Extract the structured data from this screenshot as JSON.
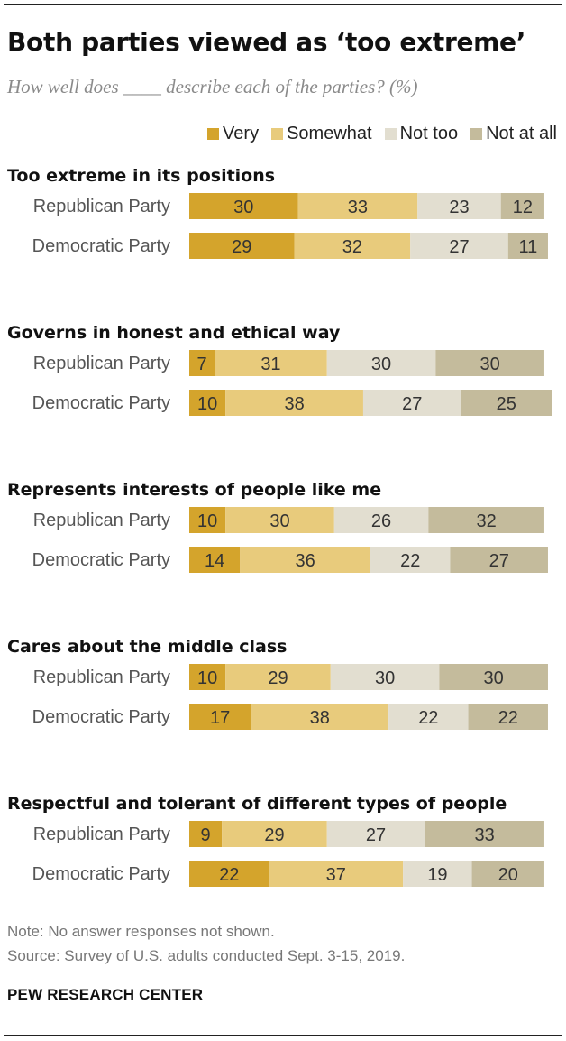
{
  "header": {
    "title": "Both parties viewed as ‘too extreme’",
    "subtitle": "How well does ____ describe each of the parties? (%)"
  },
  "legend": {
    "items": [
      {
        "label": "Very",
        "color": "#d4a42c"
      },
      {
        "label": "Somewhat",
        "color": "#e8cb7c"
      },
      {
        "label": "Not too",
        "color": "#e2ded0"
      },
      {
        "label": "Not at all",
        "color": "#c4bb9c"
      }
    ]
  },
  "chart_data": {
    "type": "bar",
    "orientation": "horizontal",
    "stacked": true,
    "title": "Both parties viewed as ‘too extreme’",
    "subtitle": "How well does ____ describe each of the parties? (%)",
    "series_names": [
      "Very",
      "Somewhat",
      "Not too",
      "Not at all"
    ],
    "colors": [
      "#d4a42c",
      "#e8cb7c",
      "#e2ded0",
      "#c4bb9c"
    ],
    "legend_position": "top-right",
    "grid": false,
    "groups": [
      {
        "label": "Too extreme in its positions",
        "rows": [
          {
            "label": "Republican Party",
            "values": [
              30,
              33,
              23,
              12
            ]
          },
          {
            "label": "Democratic Party",
            "values": [
              29,
              32,
              27,
              11
            ]
          }
        ]
      },
      {
        "label": "Governs in honest and ethical way",
        "rows": [
          {
            "label": "Republican Party",
            "values": [
              7,
              31,
              30,
              30
            ]
          },
          {
            "label": "Democratic Party",
            "values": [
              10,
              38,
              27,
              25
            ]
          }
        ]
      },
      {
        "label": "Represents interests of people like me",
        "rows": [
          {
            "label": "Republican Party",
            "values": [
              10,
              30,
              26,
              32
            ]
          },
          {
            "label": "Democratic Party",
            "values": [
              14,
              36,
              22,
              27
            ]
          }
        ]
      },
      {
        "label": "Cares about the middle class",
        "rows": [
          {
            "label": "Republican Party",
            "values": [
              10,
              29,
              30,
              30
            ]
          },
          {
            "label": "Democratic Party",
            "values": [
              17,
              38,
              22,
              22
            ]
          }
        ]
      },
      {
        "label": "Respectful and tolerant of different types of people",
        "rows": [
          {
            "label": "Republican Party",
            "values": [
              9,
              29,
              27,
              33
            ]
          },
          {
            "label": "Democratic Party",
            "values": [
              22,
              37,
              19,
              20
            ]
          }
        ]
      }
    ]
  },
  "footer": {
    "note": "Note: No answer responses not shown.",
    "source": "Source: Survey of U.S. adults conducted Sept. 3-15, 2019.",
    "brand": "PEW RESEARCH CENTER"
  }
}
